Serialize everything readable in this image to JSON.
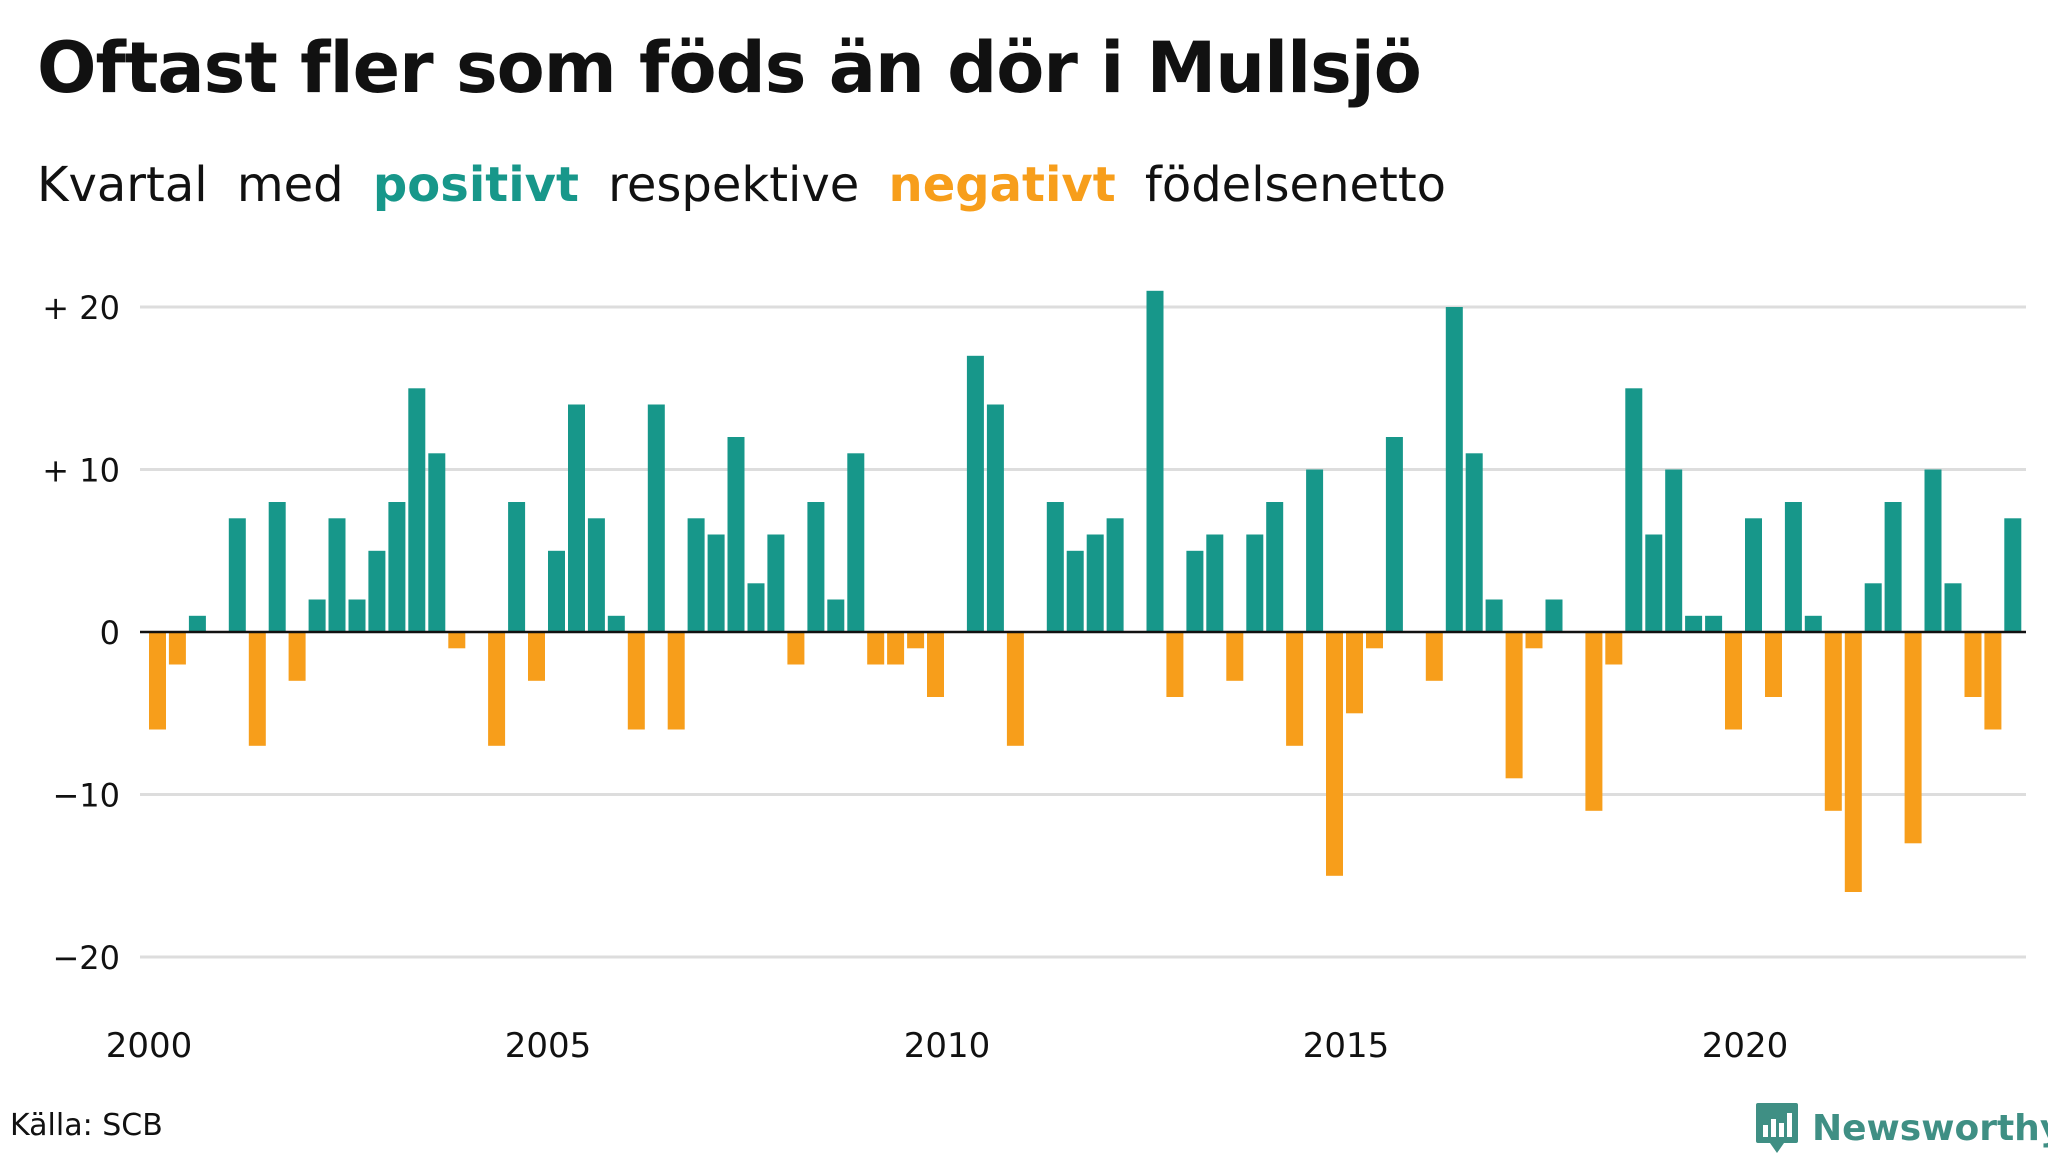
{
  "header": {
    "title": "Oftast fler som föds än dör i Mullsjö",
    "subtitle": {
      "prefix": "Kvartal",
      "word_with": "med",
      "positive_label": "positivt",
      "middle": "respektive",
      "negative_label": "negativt",
      "suffix": "födelsenetto"
    }
  },
  "colors": {
    "positive": "#17978a",
    "negative": "#f79e1b",
    "grid": "#dddddd",
    "text": "#111111"
  },
  "footer": {
    "source": "Källa: SCB",
    "brand": "Newsworthy",
    "brand_icon": "newsworthy-bar-chart-icon"
  },
  "chart_data": {
    "type": "bar",
    "title": "Oftast fler som föds än dör i Mullsjö",
    "ylim": [
      -20,
      20
    ],
    "yticks": [
      20,
      10,
      0,
      -10,
      -20
    ],
    "ytick_labels": [
      "+ 20",
      "+ 10",
      "0",
      "−10",
      "−20"
    ],
    "xlim": [
      "2000 Q1",
      "2023 Q4"
    ],
    "xtick_labels": [
      "2000",
      "2005",
      "2010",
      "2015",
      "2020"
    ],
    "grid": true,
    "categories": [
      "2000 Q1",
      "2000 Q2",
      "2000 Q3",
      "2000 Q4",
      "2001 Q1",
      "2001 Q2",
      "2001 Q3",
      "2001 Q4",
      "2002 Q1",
      "2002 Q2",
      "2002 Q3",
      "2002 Q4",
      "2003 Q1",
      "2003 Q2",
      "2003 Q3",
      "2003 Q4",
      "2004 Q1",
      "2004 Q2",
      "2004 Q3",
      "2004 Q4",
      "2005 Q1",
      "2005 Q2",
      "2005 Q3",
      "2005 Q4",
      "2006 Q1",
      "2006 Q2",
      "2006 Q3",
      "2006 Q4",
      "2007 Q1",
      "2007 Q2",
      "2007 Q3",
      "2007 Q4",
      "2008 Q1",
      "2008 Q2",
      "2008 Q3",
      "2008 Q4",
      "2009 Q1",
      "2009 Q2",
      "2009 Q3",
      "2009 Q4",
      "2010 Q1",
      "2010 Q2",
      "2010 Q3",
      "2010 Q4",
      "2011 Q1",
      "2011 Q2",
      "2011 Q3",
      "2011 Q4",
      "2012 Q1",
      "2012 Q2",
      "2012 Q3",
      "2012 Q4",
      "2013 Q1",
      "2013 Q2",
      "2013 Q3",
      "2013 Q4",
      "2014 Q1",
      "2014 Q2",
      "2014 Q3",
      "2014 Q4",
      "2015 Q1",
      "2015 Q2",
      "2015 Q3",
      "2015 Q4",
      "2016 Q1",
      "2016 Q2",
      "2016 Q3",
      "2016 Q4",
      "2017 Q1",
      "2017 Q2",
      "2017 Q3",
      "2017 Q4",
      "2018 Q1",
      "2018 Q2",
      "2018 Q3",
      "2018 Q4",
      "2019 Q1",
      "2019 Q2",
      "2019 Q3",
      "2019 Q4",
      "2020 Q1",
      "2020 Q2",
      "2020 Q3",
      "2020 Q4",
      "2021 Q1",
      "2021 Q2",
      "2021 Q3",
      "2021 Q4",
      "2022 Q1",
      "2022 Q2",
      "2022 Q3",
      "2022 Q4",
      "2023 Q1",
      "2023 Q2",
      "2023 Q3",
      "2023 Q4"
    ],
    "values": [
      -6,
      -2,
      1,
      0,
      7,
      -7,
      8,
      -3,
      2,
      7,
      2,
      5,
      8,
      15,
      11,
      -1,
      0,
      -7,
      8,
      -3,
      5,
      14,
      7,
      1,
      -6,
      14,
      -6,
      7,
      6,
      12,
      3,
      6,
      -2,
      8,
      2,
      11,
      -2,
      -2,
      -1,
      -4,
      0,
      17,
      14,
      -7,
      0,
      8,
      5,
      6,
      7,
      0,
      21,
      -4,
      5,
      6,
      -3,
      6,
      8,
      -7,
      10,
      -15,
      -5,
      -1,
      12,
      0,
      -3,
      20,
      11,
      2,
      -9,
      -1,
      2,
      0,
      -11,
      -2,
      15,
      6,
      10,
      1,
      1,
      -6,
      7,
      -4,
      8,
      1,
      -11,
      -16,
      3,
      8,
      -13,
      10,
      3,
      -4,
      -6,
      7,
      0,
      0
    ]
  }
}
